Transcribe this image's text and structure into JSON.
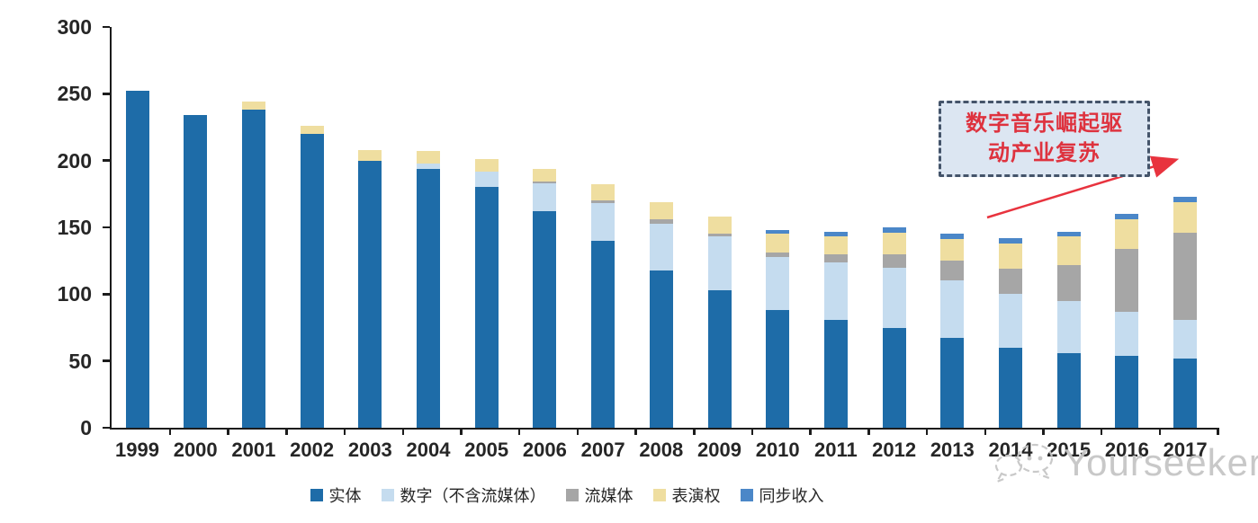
{
  "chart_data": {
    "type": "bar",
    "stacked": true,
    "categories": [
      "1999",
      "2000",
      "2001",
      "2002",
      "2003",
      "2004",
      "2005",
      "2006",
      "2007",
      "2008",
      "2009",
      "2010",
      "2011",
      "2012",
      "2013",
      "2014",
      "2015",
      "2016",
      "2017"
    ],
    "series": [
      {
        "name": "实体",
        "color": "#1E6CA8",
        "values": [
          252,
          234,
          238,
          220,
          200,
          194,
          180,
          162,
          140,
          118,
          103,
          88,
          81,
          75,
          67,
          60,
          56,
          54,
          52
        ]
      },
      {
        "name": "数字（不含流媒体）",
        "color": "#C5DCEF",
        "values": [
          0,
          0,
          0,
          0,
          0,
          4,
          12,
          21,
          28,
          35,
          40,
          40,
          43,
          45,
          43,
          40,
          39,
          33,
          29
        ]
      },
      {
        "name": "流媒体",
        "color": "#A6A6A6",
        "values": [
          0,
          0,
          0,
          0,
          0,
          0,
          0,
          1,
          2,
          3,
          2,
          3,
          6,
          10,
          15,
          19,
          27,
          47,
          65
        ]
      },
      {
        "name": "表演权",
        "color": "#EFDEA0",
        "values": [
          0,
          0,
          6,
          6,
          8,
          9,
          9,
          10,
          12,
          13,
          13,
          14,
          13,
          16,
          16,
          19,
          21,
          22,
          23
        ]
      },
      {
        "name": "同步收入",
        "color": "#4B87C8",
        "values": [
          0,
          0,
          0,
          0,
          0,
          0,
          0,
          0,
          0,
          0,
          0,
          3,
          4,
          4,
          4,
          4,
          4,
          4,
          4
        ]
      }
    ],
    "ylim": [
      0,
      300
    ],
    "yticks": [
      0,
      50,
      100,
      150,
      200,
      250,
      300
    ],
    "grid": false,
    "legend_position": "bottom",
    "annotation": {
      "line1": "数字音乐崛起驱",
      "line2": "动产业复苏",
      "text_color": "#de323e",
      "box_background": "#dce6f2",
      "box_border_color": "#44546a",
      "arrow_color": "#e8333e"
    }
  },
  "watermark": {
    "text": "Yourseeker"
  }
}
